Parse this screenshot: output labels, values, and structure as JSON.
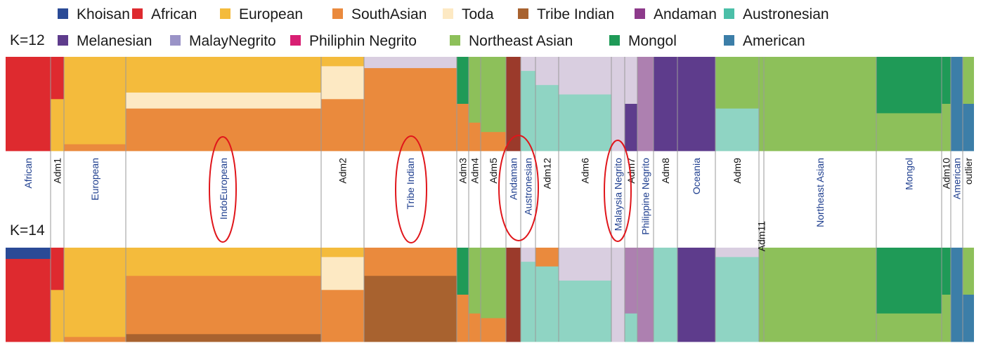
{
  "legend": [
    {
      "label": "Khoisan",
      "color": "#2a4a96"
    },
    {
      "label": "African",
      "color": "#de2a2f"
    },
    {
      "label": "European",
      "color": "#f4bb3c"
    },
    {
      "label": "SouthAsian",
      "color": "#ea8a3d"
    },
    {
      "label": "Toda",
      "color": "#fde9c3"
    },
    {
      "label": "Tribe Indian",
      "color": "#a8622f"
    },
    {
      "label": "Andaman",
      "color": "#8d3a8b"
    },
    {
      "label": "Austronesian",
      "color": "#4bbfa8"
    },
    {
      "label": "Melanesian",
      "color": "#5e3c8c"
    },
    {
      "label": "MalayNegrito",
      "color": "#9a93c7"
    },
    {
      "label": "Philiphin Negrito",
      "color": "#d81f73"
    },
    {
      "label": "Northeast Asian",
      "color": "#8dc05a"
    },
    {
      "label": "Mongol",
      "color": "#1f9a57"
    },
    {
      "label": "American",
      "color": "#3c7ea8"
    }
  ],
  "panels": [
    {
      "label": "K=12"
    },
    {
      "label": "K=14"
    }
  ],
  "populations": [
    {
      "label": "African",
      "style": "group",
      "x0": 8,
      "x1": 72,
      "top": [
        {
          "c": "#de2a2f",
          "v": 1
        }
      ],
      "bottom": [
        {
          "c": "#2a4a96",
          "v": 0.12
        },
        {
          "c": "#de2a2f",
          "v": 0.88
        }
      ]
    },
    {
      "label": "Adm1",
      "style": "admix",
      "x0": 72,
      "x1": 91,
      "top": [
        {
          "c": "#de2a2f",
          "v": 0.45
        },
        {
          "c": "#f4bb3c",
          "v": 0.55
        }
      ],
      "bottom": [
        {
          "c": "#de2a2f",
          "v": 0.45
        },
        {
          "c": "#f4bb3c",
          "v": 0.55
        }
      ]
    },
    {
      "label": "European",
      "style": "group",
      "x0": 91,
      "x1": 179,
      "top": [
        {
          "c": "#f4bb3c",
          "v": 0.93
        },
        {
          "c": "#ea8a3d",
          "v": 0.07
        }
      ],
      "bottom": [
        {
          "c": "#f4bb3c",
          "v": 0.95
        },
        {
          "c": "#ea8a3d",
          "v": 0.05
        }
      ]
    },
    {
      "label": "IndoEuropean",
      "style": "group",
      "x0": 179,
      "x1": 457,
      "top": [
        {
          "c": "#f4bb3c",
          "v": 0.38
        },
        {
          "c": "#fde9c3",
          "v": 0.17
        },
        {
          "c": "#ea8a3d",
          "v": 0.45
        }
      ],
      "bottom": [
        {
          "c": "#f4bb3c",
          "v": 0.3
        },
        {
          "c": "#ea8a3d",
          "v": 0.62
        },
        {
          "c": "#a8622f",
          "v": 0.08
        }
      ]
    },
    {
      "label": "Adm2",
      "style": "admix",
      "x0": 457,
      "x1": 518,
      "top": [
        {
          "c": "#f4bb3c",
          "v": 0.1
        },
        {
          "c": "#fde9c3",
          "v": 0.35
        },
        {
          "c": "#ea8a3d",
          "v": 0.55
        }
      ],
      "bottom": [
        {
          "c": "#f4bb3c",
          "v": 0.1
        },
        {
          "c": "#fde9c3",
          "v": 0.35
        },
        {
          "c": "#ea8a3d",
          "v": 0.55
        }
      ]
    },
    {
      "label": "Tribe Indian",
      "style": "group",
      "x0": 518,
      "x1": 650,
      "top": [
        {
          "c": "#d9cee0",
          "v": 0.12
        },
        {
          "c": "#ea8a3d",
          "v": 0.88
        }
      ],
      "bottom": [
        {
          "c": "#ea8a3d",
          "v": 0.3
        },
        {
          "c": "#a8622f",
          "v": 0.7
        }
      ]
    },
    {
      "label": "Adm3",
      "style": "admix",
      "x0": 650,
      "x1": 667,
      "top": [
        {
          "c": "#1f9a57",
          "v": 0.5
        },
        {
          "c": "#ea8a3d",
          "v": 0.5
        }
      ],
      "bottom": [
        {
          "c": "#1f9a57",
          "v": 0.5
        },
        {
          "c": "#ea8a3d",
          "v": 0.5
        }
      ]
    },
    {
      "label": "Adm4",
      "style": "admix",
      "x0": 667,
      "x1": 684,
      "top": [
        {
          "c": "#8dc05a",
          "v": 0.7
        },
        {
          "c": "#ea8a3d",
          "v": 0.3
        }
      ],
      "bottom": [
        {
          "c": "#8dc05a",
          "v": 0.7
        },
        {
          "c": "#ea8a3d",
          "v": 0.3
        }
      ]
    },
    {
      "label": "Adm5",
      "style": "admix",
      "x0": 684,
      "x1": 720,
      "top": [
        {
          "c": "#8dc05a",
          "v": 0.8
        },
        {
          "c": "#ea8a3d",
          "v": 0.2
        }
      ],
      "bottom": [
        {
          "c": "#8dc05a",
          "v": 0.75
        },
        {
          "c": "#ea8a3d",
          "v": 0.25
        }
      ]
    },
    {
      "label": "Andaman",
      "style": "group",
      "x0": 720,
      "x1": 741,
      "top": [
        {
          "c": "#9b3a2b",
          "v": 1
        }
      ],
      "bottom": [
        {
          "c": "#9b3a2b",
          "v": 1
        }
      ]
    },
    {
      "label": "Austronesian",
      "style": "group",
      "x0": 741,
      "x1": 762,
      "top": [
        {
          "c": "#d9cee0",
          "v": 0.15
        },
        {
          "c": "#8fd4c3",
          "v": 0.85
        }
      ],
      "bottom": [
        {
          "c": "#d9cee0",
          "v": 0.15
        },
        {
          "c": "#8fd4c3",
          "v": 0.85
        }
      ]
    },
    {
      "label": "Adm12",
      "style": "admix",
      "x0": 762,
      "x1": 795,
      "top": [
        {
          "c": "#d9cee0",
          "v": 0.3
        },
        {
          "c": "#8fd4c3",
          "v": 0.7
        }
      ],
      "bottom": [
        {
          "c": "#ea8a3d",
          "v": 0.2
        },
        {
          "c": "#8fd4c3",
          "v": 0.8
        }
      ]
    },
    {
      "label": "Adm6",
      "style": "admix",
      "x0": 795,
      "x1": 870,
      "top": [
        {
          "c": "#d9cee0",
          "v": 0.4
        },
        {
          "c": "#8fd4c3",
          "v": 0.6
        }
      ],
      "bottom": [
        {
          "c": "#d9cee0",
          "v": 0.35
        },
        {
          "c": "#8fd4c3",
          "v": 0.65
        }
      ]
    },
    {
      "label": "Malaysia Negrito",
      "style": "group",
      "x0": 870,
      "x1": 889,
      "top": [
        {
          "c": "#d9cee0",
          "v": 1
        }
      ],
      "bottom": [
        {
          "c": "#d9cee0",
          "v": 1
        }
      ]
    },
    {
      "label": "Adm7",
      "style": "admix",
      "x0": 889,
      "x1": 907,
      "top": [
        {
          "c": "#d9cee0",
          "v": 0.5
        },
        {
          "c": "#5e3c8c",
          "v": 0.5
        }
      ],
      "bottom": [
        {
          "c": "#ad80b0",
          "v": 0.7
        },
        {
          "c": "#8fd4c3",
          "v": 0.3
        }
      ]
    },
    {
      "label": "Philippine Negrito",
      "style": "group",
      "x0": 907,
      "x1": 930,
      "top": [
        {
          "c": "#ad80b0",
          "v": 1
        }
      ],
      "bottom": [
        {
          "c": "#ad80b0",
          "v": 1
        }
      ]
    },
    {
      "label": "Adm8",
      "style": "admix",
      "x0": 930,
      "x1": 964,
      "top": [
        {
          "c": "#5e3c8c",
          "v": 1
        }
      ],
      "bottom": [
        {
          "c": "#8fd4c3",
          "v": 1
        }
      ]
    },
    {
      "label": "Oceania",
      "style": "group",
      "x0": 964,
      "x1": 1018,
      "top": [
        {
          "c": "#5e3c8c",
          "v": 1
        }
      ],
      "bottom": [
        {
          "c": "#5e3c8c",
          "v": 1
        }
      ]
    },
    {
      "label": "Adm9",
      "style": "admix",
      "x0": 1018,
      "x1": 1080,
      "top": [
        {
          "c": "#8dc05a",
          "v": 0.55
        },
        {
          "c": "#8fd4c3",
          "v": 0.45
        }
      ],
      "bottom": [
        {
          "c": "#d9cee0",
          "v": 0.1
        },
        {
          "c": "#8fd4c3",
          "v": 0.9
        }
      ]
    },
    {
      "label": "Adm11",
      "style": "admix",
      "x0": 1080,
      "x1": 1087,
      "top": [
        {
          "c": "#8dc05a",
          "v": 1
        }
      ],
      "bottom": [
        {
          "c": "#8dc05a",
          "v": 1
        }
      ]
    },
    {
      "label": "Northeast Asian",
      "style": "group",
      "x0": 1087,
      "x1": 1247,
      "top": [
        {
          "c": "#8dc05a",
          "v": 1
        }
      ],
      "bottom": [
        {
          "c": "#8dc05a",
          "v": 1
        }
      ]
    },
    {
      "label": "Mongol",
      "style": "group",
      "x0": 1247,
      "x1": 1340,
      "top": [
        {
          "c": "#1f9a57",
          "v": 0.6
        },
        {
          "c": "#8dc05a",
          "v": 0.4
        }
      ],
      "bottom": [
        {
          "c": "#1f9a57",
          "v": 0.7
        },
        {
          "c": "#8dc05a",
          "v": 0.3
        }
      ]
    },
    {
      "label": "Adm10",
      "style": "admix",
      "x0": 1340,
      "x1": 1353,
      "top": [
        {
          "c": "#1f9a57",
          "v": 0.5
        },
        {
          "c": "#8dc05a",
          "v": 0.5
        }
      ],
      "bottom": [
        {
          "c": "#1f9a57",
          "v": 0.5
        },
        {
          "c": "#8dc05a",
          "v": 0.5
        }
      ]
    },
    {
      "label": "American",
      "style": "group",
      "x0": 1353,
      "x1": 1370,
      "top": [
        {
          "c": "#3c7ea8",
          "v": 1
        }
      ],
      "bottom": [
        {
          "c": "#3c7ea8",
          "v": 1
        }
      ]
    },
    {
      "label": "outlier",
      "style": "admix",
      "x0": 1370,
      "x1": 1386,
      "top": [
        {
          "c": "#8dc05a",
          "v": 0.5
        },
        {
          "c": "#3c7ea8",
          "v": 0.5
        }
      ],
      "bottom": [
        {
          "c": "#8dc05a",
          "v": 0.5
        },
        {
          "c": "#3c7ea8",
          "v": 0.5
        }
      ]
    }
  ],
  "highlighted": [
    "IndoEuropean",
    "Tribe Indian",
    "Andaman",
    "Austronesian",
    "Malaysia Negrito"
  ],
  "colors": {
    "group_label": "#1f3f8f",
    "admix_label": "#111111",
    "divider": "#9a9a9a",
    "highlight_circle": "#e0161b"
  }
}
